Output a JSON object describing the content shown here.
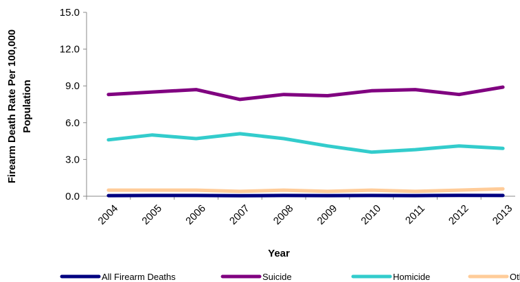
{
  "chart_data": {
    "type": "line",
    "categories": [
      "2004",
      "2005",
      "2006",
      "2007",
      "2008",
      "2009",
      "2010",
      "2011",
      "2012",
      "2013"
    ],
    "x_tick_labels": [
      "2004",
      "2005",
      "2006",
      "2007",
      "2008",
      "2009",
      "2010",
      "2011",
      "2012",
      "2013"
    ],
    "y_tick_labels": [
      "0.0",
      "3.0",
      "6.0",
      "9.0",
      "12.0",
      "15.0"
    ],
    "xlabel": "Year",
    "ylabel_lines": [
      "Firearm Death Rate Per 100,000",
      "Population"
    ],
    "ylim": [
      0,
      15
    ],
    "y_ticks": [
      0,
      3,
      6,
      9,
      12,
      15
    ],
    "grid": false,
    "legend_position": "bottom",
    "series": [
      {
        "name": "All Firearm Deaths",
        "color": "#000080",
        "values": [
          0.05,
          0.06,
          0.06,
          0.04,
          0.06,
          0.05,
          0.06,
          0.05,
          0.07,
          0.06
        ]
      },
      {
        "name": "Suicide",
        "color": "#800080",
        "values": [
          8.3,
          8.5,
          8.7,
          7.9,
          8.3,
          8.2,
          8.6,
          8.7,
          8.3,
          8.9
        ]
      },
      {
        "name": "Homicide",
        "color": "#33CCCC",
        "values": [
          4.6,
          5.0,
          4.7,
          5.1,
          4.7,
          4.1,
          3.6,
          3.8,
          4.1,
          3.9
        ]
      },
      {
        "name": "Other",
        "color": "#FFCC99",
        "values": [
          0.5,
          0.5,
          0.5,
          0.4,
          0.5,
          0.4,
          0.5,
          0.4,
          0.5,
          0.6
        ]
      }
    ]
  }
}
